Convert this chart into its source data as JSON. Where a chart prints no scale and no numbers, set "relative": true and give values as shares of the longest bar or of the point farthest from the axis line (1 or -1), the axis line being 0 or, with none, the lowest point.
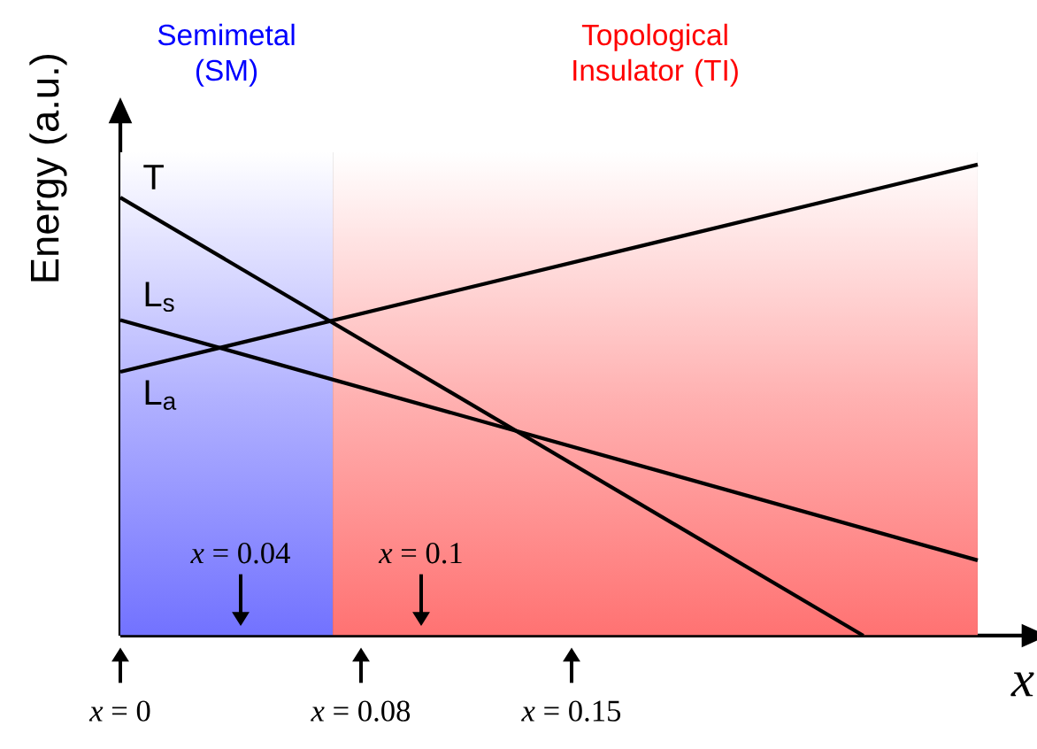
{
  "chart_data": {
    "type": "line",
    "relative": true,
    "ylabel": "Energy (a.u.)",
    "xlabel": "x",
    "xlim": [
      0,
      0.3
    ],
    "xticks": [
      {
        "value": 0,
        "label": "*x* = 0"
      },
      {
        "value": 0.08,
        "label": "*x* = 0.08"
      },
      {
        "value": 0.15,
        "label": "*x* = 0.15"
      }
    ],
    "series": [
      {
        "name": "T",
        "color": "#000000",
        "x": [
          0,
          0.247
        ],
        "values": [
          0.93,
          0
        ]
      },
      {
        "name": "L$_{s}$",
        "color": "#000000",
        "x": [
          0,
          0.285
        ],
        "values": [
          0.67,
          0.16
        ]
      },
      {
        "name": "L$_{a}$",
        "color": "#000000",
        "x": [
          0,
          0.285
        ],
        "values": [
          0.56,
          1.0
        ]
      }
    ],
    "bands": [
      {
        "axis": "x",
        "from": 0,
        "to": 0.0706,
        "label": "Semimetal (SM)",
        "color": "#0000ff"
      },
      {
        "axis": "x",
        "from": 0.0706,
        "to": 0.285,
        "label": "Topological Insulator (TI)",
        "color": "#ff0000"
      }
    ],
    "annotations": [
      {
        "text": "*x* = 0.04",
        "x": 0.04,
        "y": 0
      },
      {
        "text": "*x* = 0.1",
        "x": 0.1,
        "y": 0
      }
    ]
  }
}
